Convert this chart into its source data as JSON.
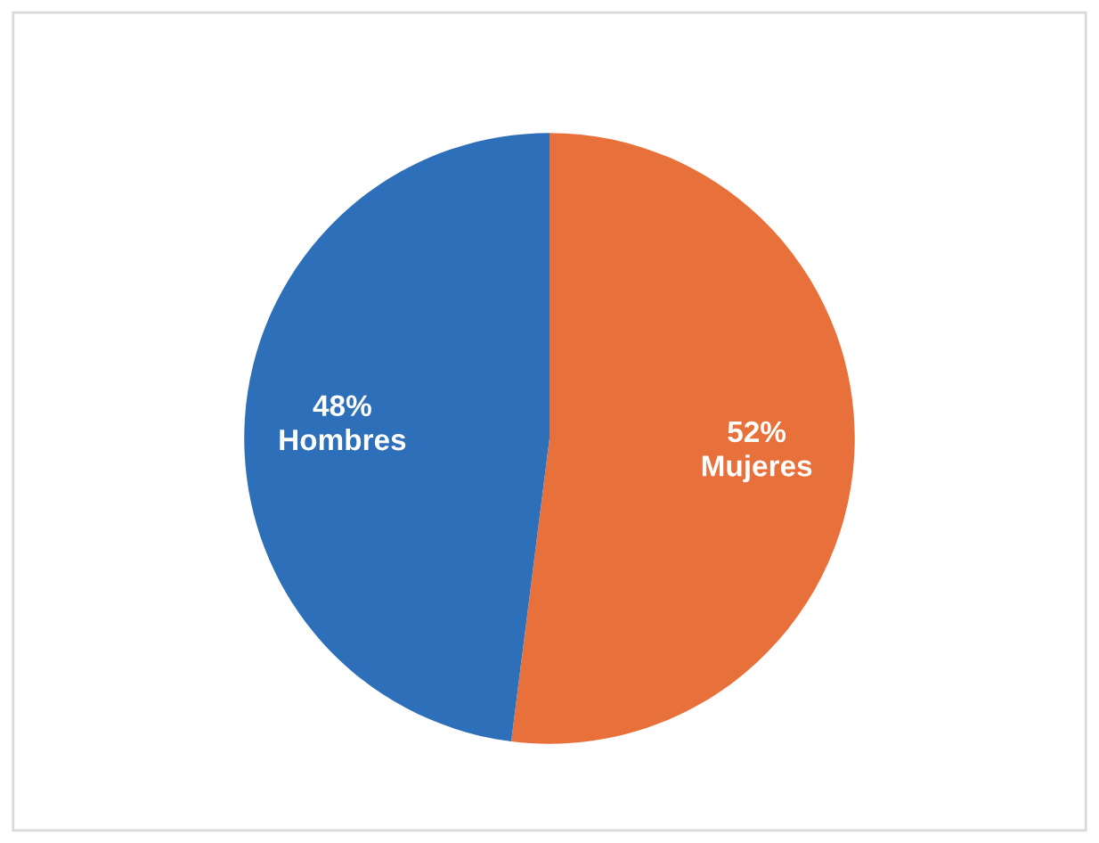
{
  "chart_data": {
    "type": "pie",
    "categories": [
      "Mujeres",
      "Hombres"
    ],
    "values": [
      52,
      48
    ],
    "value_labels": [
      "52%",
      "48%"
    ],
    "colors": [
      "#e8703a",
      "#2e6fba"
    ]
  }
}
